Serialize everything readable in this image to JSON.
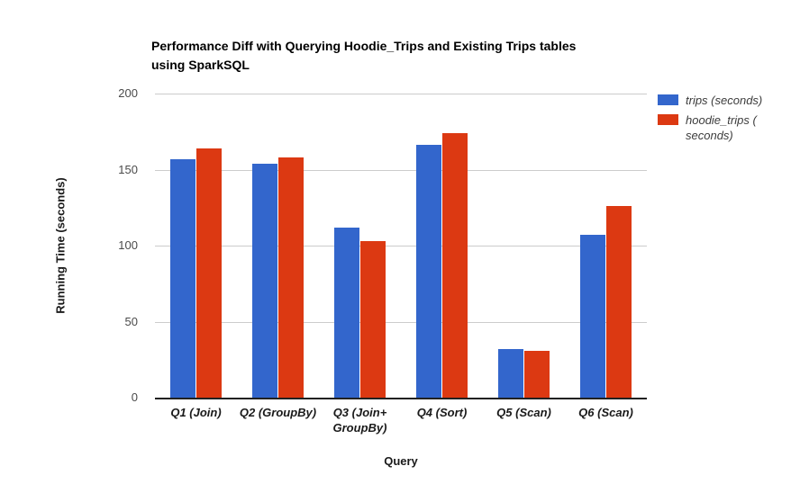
{
  "chart_data": {
    "type": "bar",
    "title": "Performance Diff with Querying Hoodie_Trips and Existing Trips tables\nusing SparkSQL",
    "xlabel": "Query",
    "ylabel": "Running Time (seconds)",
    "categories": [
      "Q1 (Join)",
      "Q2 (GroupBy)",
      "Q3 (Join+\nGroupBy)",
      "Q4 (Sort)",
      "Q5 (Scan)",
      "Q6 (Scan)"
    ],
    "series": [
      {
        "name": "trips (seconds)",
        "color": "#3366cc",
        "values": [
          157,
          154,
          112,
          166,
          32,
          107
        ]
      },
      {
        "name": "hoodie_trips (seconds)",
        "color": "#dc3912",
        "values": [
          164,
          158,
          103,
          174,
          31,
          126
        ]
      }
    ],
    "ylim": [
      0,
      200
    ],
    "yticks": [
      0,
      50,
      100,
      150,
      200
    ],
    "grid": true,
    "grid_color": "#cccccc",
    "axis_line_color": "#212121",
    "legend": {
      "position": "right",
      "labels": [
        "trips (seconds)",
        "hoodie_trips (\nseconds)"
      ]
    }
  }
}
